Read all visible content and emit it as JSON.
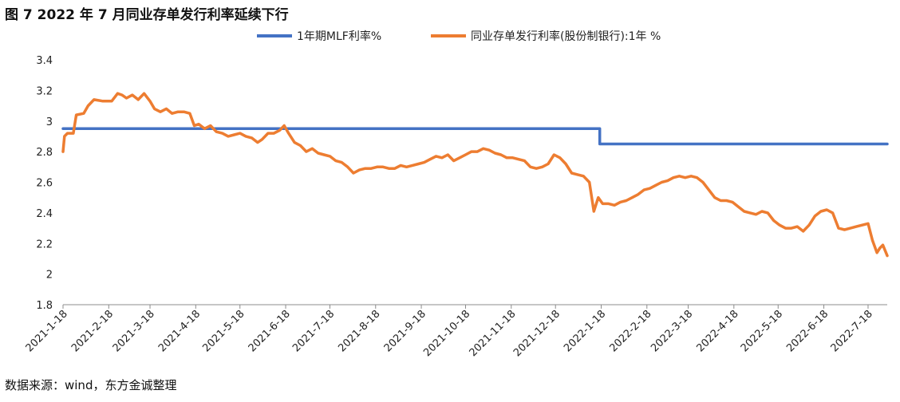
{
  "title": "图 7 2022 年 7 月同业存单发行利率延续下行",
  "source": "数据来源：wind，东方金诚整理",
  "colors": {
    "mlf": "#4472C4",
    "ncd": "#ED7D31",
    "axis": "#8C8C8C"
  },
  "chart_data": {
    "type": "line",
    "title": "图 7 2022 年 7 月同业存单发行利率延续下行",
    "xlabel": "",
    "ylabel": "",
    "ylim": [
      1.8,
      3.4
    ],
    "yticks": [
      "1.8",
      "2",
      "2.2",
      "2.4",
      "2.6",
      "2.8",
      "3",
      "3.2",
      "3.4"
    ],
    "xlim": [
      "2021-01-18",
      "2022-07-31"
    ],
    "xticks": [
      "2021-1-18",
      "2021-2-18",
      "2021-3-18",
      "2021-4-18",
      "2021-5-18",
      "2021-6-18",
      "2021-7-18",
      "2021-8-18",
      "2021-9-18",
      "2021-10-18",
      "2021-11-18",
      "2021-12-18",
      "2022-1-18",
      "2022-2-18",
      "2022-3-18",
      "2022-4-18",
      "2022-5-18",
      "2022-6-18",
      "2022-7-18"
    ],
    "legend_position": "top",
    "grid": false,
    "series": [
      {
        "name": "1年期MLF利率%",
        "color": "#4472C4",
        "step": true,
        "points": [
          [
            "2021-01-18",
            2.95
          ],
          [
            "2022-01-17",
            2.95
          ],
          [
            "2022-01-17",
            2.85
          ],
          [
            "2022-07-31",
            2.85
          ]
        ]
      },
      {
        "name": "同业存单发行利率(股份制银行):1年 %",
        "color": "#ED7D31",
        "points": [
          [
            "2021-01-18",
            2.8
          ],
          [
            "2021-01-19",
            2.9
          ],
          [
            "2021-01-21",
            2.92
          ],
          [
            "2021-01-25",
            2.92
          ],
          [
            "2021-01-27",
            3.04
          ],
          [
            "2021-02-01",
            3.05
          ],
          [
            "2021-02-04",
            3.1
          ],
          [
            "2021-02-08",
            3.14
          ],
          [
            "2021-02-14",
            3.13
          ],
          [
            "2021-02-20",
            3.13
          ],
          [
            "2021-02-24",
            3.18
          ],
          [
            "2021-02-27",
            3.17
          ],
          [
            "2021-03-02",
            3.15
          ],
          [
            "2021-03-06",
            3.17
          ],
          [
            "2021-03-10",
            3.14
          ],
          [
            "2021-03-14",
            3.18
          ],
          [
            "2021-03-18",
            3.13
          ],
          [
            "2021-03-21",
            3.08
          ],
          [
            "2021-03-25",
            3.06
          ],
          [
            "2021-03-29",
            3.08
          ],
          [
            "2021-04-02",
            3.05
          ],
          [
            "2021-04-06",
            3.06
          ],
          [
            "2021-04-10",
            3.06
          ],
          [
            "2021-04-14",
            3.05
          ],
          [
            "2021-04-17",
            2.97
          ],
          [
            "2021-04-20",
            2.98
          ],
          [
            "2021-04-24",
            2.95
          ],
          [
            "2021-04-28",
            2.97
          ],
          [
            "2021-05-02",
            2.93
          ],
          [
            "2021-05-06",
            2.92
          ],
          [
            "2021-05-10",
            2.9
          ],
          [
            "2021-05-14",
            2.91
          ],
          [
            "2021-05-18",
            2.92
          ],
          [
            "2021-05-22",
            2.9
          ],
          [
            "2021-05-26",
            2.89
          ],
          [
            "2021-05-30",
            2.86
          ],
          [
            "2021-06-02",
            2.88
          ],
          [
            "2021-06-06",
            2.92
          ],
          [
            "2021-06-10",
            2.92
          ],
          [
            "2021-06-14",
            2.94
          ],
          [
            "2021-06-17",
            2.97
          ],
          [
            "2021-06-20",
            2.92
          ],
          [
            "2021-06-24",
            2.86
          ],
          [
            "2021-06-28",
            2.84
          ],
          [
            "2021-07-02",
            2.8
          ],
          [
            "2021-07-06",
            2.82
          ],
          [
            "2021-07-10",
            2.79
          ],
          [
            "2021-07-14",
            2.78
          ],
          [
            "2021-07-18",
            2.77
          ],
          [
            "2021-07-22",
            2.74
          ],
          [
            "2021-07-26",
            2.73
          ],
          [
            "2021-07-30",
            2.7
          ],
          [
            "2021-08-03",
            2.66
          ],
          [
            "2021-08-07",
            2.68
          ],
          [
            "2021-08-11",
            2.69
          ],
          [
            "2021-08-15",
            2.69
          ],
          [
            "2021-08-19",
            2.7
          ],
          [
            "2021-08-23",
            2.7
          ],
          [
            "2021-08-27",
            2.69
          ],
          [
            "2021-08-31",
            2.69
          ],
          [
            "2021-09-04",
            2.71
          ],
          [
            "2021-09-08",
            2.7
          ],
          [
            "2021-09-12",
            2.71
          ],
          [
            "2021-09-16",
            2.72
          ],
          [
            "2021-09-20",
            2.73
          ],
          [
            "2021-09-24",
            2.75
          ],
          [
            "2021-09-28",
            2.77
          ],
          [
            "2021-10-02",
            2.76
          ],
          [
            "2021-10-06",
            2.78
          ],
          [
            "2021-10-10",
            2.74
          ],
          [
            "2021-10-14",
            2.76
          ],
          [
            "2021-10-18",
            2.78
          ],
          [
            "2021-10-22",
            2.8
          ],
          [
            "2021-10-26",
            2.8
          ],
          [
            "2021-10-30",
            2.82
          ],
          [
            "2021-11-03",
            2.81
          ],
          [
            "2021-11-07",
            2.79
          ],
          [
            "2021-11-11",
            2.78
          ],
          [
            "2021-11-15",
            2.76
          ],
          [
            "2021-11-19",
            2.76
          ],
          [
            "2021-11-23",
            2.75
          ],
          [
            "2021-11-27",
            2.74
          ],
          [
            "2021-12-01",
            2.7
          ],
          [
            "2021-12-05",
            2.69
          ],
          [
            "2021-12-09",
            2.7
          ],
          [
            "2021-12-13",
            2.72
          ],
          [
            "2021-12-17",
            2.78
          ],
          [
            "2021-12-21",
            2.76
          ],
          [
            "2021-12-25",
            2.72
          ],
          [
            "2021-12-29",
            2.66
          ],
          [
            "2022-01-02",
            2.65
          ],
          [
            "2022-01-06",
            2.64
          ],
          [
            "2022-01-10",
            2.6
          ],
          [
            "2022-01-13",
            2.41
          ],
          [
            "2022-01-16",
            2.5
          ],
          [
            "2022-01-19",
            2.46
          ],
          [
            "2022-01-23",
            2.46
          ],
          [
            "2022-01-27",
            2.45
          ],
          [
            "2022-01-31",
            2.47
          ],
          [
            "2022-02-04",
            2.48
          ],
          [
            "2022-02-08",
            2.5
          ],
          [
            "2022-02-12",
            2.52
          ],
          [
            "2022-02-16",
            2.55
          ],
          [
            "2022-02-20",
            2.56
          ],
          [
            "2022-02-24",
            2.58
          ],
          [
            "2022-02-28",
            2.6
          ],
          [
            "2022-03-04",
            2.61
          ],
          [
            "2022-03-08",
            2.63
          ],
          [
            "2022-03-12",
            2.64
          ],
          [
            "2022-03-16",
            2.63
          ],
          [
            "2022-03-20",
            2.64
          ],
          [
            "2022-03-24",
            2.63
          ],
          [
            "2022-03-28",
            2.6
          ],
          [
            "2022-04-01",
            2.55
          ],
          [
            "2022-04-05",
            2.5
          ],
          [
            "2022-04-09",
            2.48
          ],
          [
            "2022-04-13",
            2.48
          ],
          [
            "2022-04-17",
            2.47
          ],
          [
            "2022-04-21",
            2.44
          ],
          [
            "2022-04-25",
            2.41
          ],
          [
            "2022-04-29",
            2.4
          ],
          [
            "2022-05-03",
            2.39
          ],
          [
            "2022-05-07",
            2.41
          ],
          [
            "2022-05-11",
            2.4
          ],
          [
            "2022-05-15",
            2.35
          ],
          [
            "2022-05-19",
            2.32
          ],
          [
            "2022-05-23",
            2.3
          ],
          [
            "2022-05-27",
            2.3
          ],
          [
            "2022-05-31",
            2.31
          ],
          [
            "2022-06-04",
            2.28
          ],
          [
            "2022-06-08",
            2.32
          ],
          [
            "2022-06-12",
            2.38
          ],
          [
            "2022-06-16",
            2.41
          ],
          [
            "2022-06-20",
            2.42
          ],
          [
            "2022-06-24",
            2.4
          ],
          [
            "2022-06-28",
            2.3
          ],
          [
            "2022-07-02",
            2.29
          ],
          [
            "2022-07-06",
            2.3
          ],
          [
            "2022-07-10",
            2.31
          ],
          [
            "2022-07-14",
            2.32
          ],
          [
            "2022-07-18",
            2.33
          ],
          [
            "2022-07-21",
            2.22
          ],
          [
            "2022-07-24",
            2.14
          ],
          [
            "2022-07-26",
            2.17
          ],
          [
            "2022-07-28",
            2.19
          ],
          [
            "2022-07-31",
            2.12
          ]
        ]
      }
    ]
  }
}
